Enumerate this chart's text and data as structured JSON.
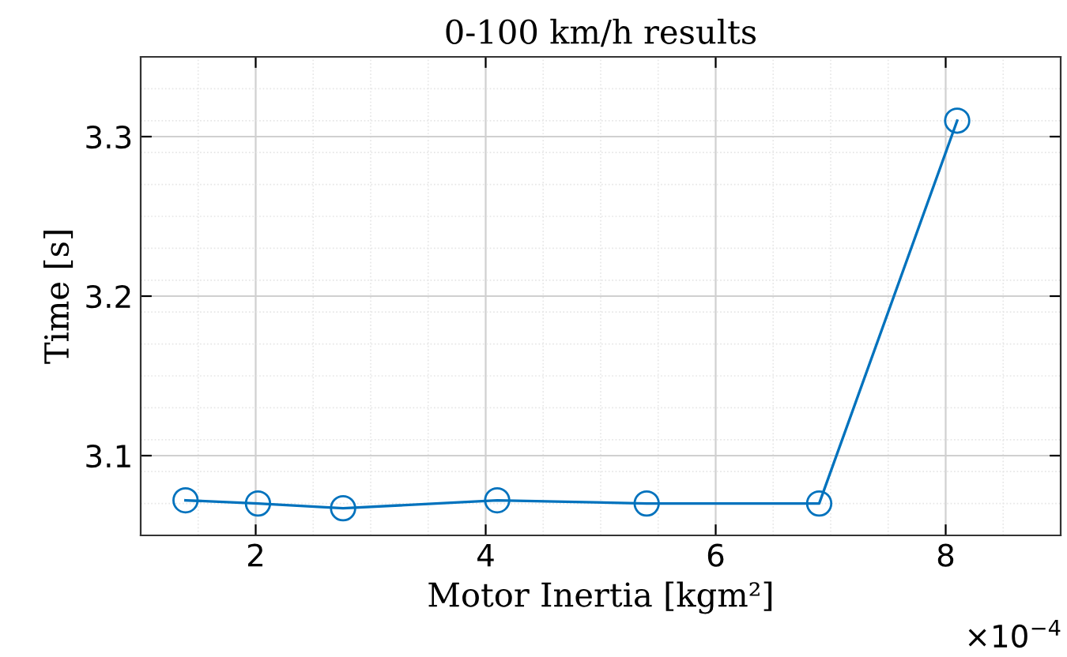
{
  "chart_data": {
    "type": "line",
    "title": "0-100 km/h results",
    "xlabel": "Motor Inertia [kgm²]",
    "ylabel": "Time [s]",
    "annotations": [
      "×10$^{−4}$"
    ],
    "x": [
      1.39,
      2.02,
      2.76,
      4.1,
      5.4,
      6.9,
      8.1
    ],
    "series": [
      {
        "color": "#0072bd",
        "values": [
          3.072,
          3.07,
          3.067,
          3.072,
          3.07,
          3.07,
          3.31
        ]
      }
    ],
    "xlim": [
      1,
      9
    ],
    "xticks": [
      2,
      4,
      6,
      8
    ],
    "ylim": [
      3.05,
      3.35
    ],
    "yticks": [
      {
        "value": 3.1,
        "label": "3.1"
      },
      {
        "value": 3.2,
        "label": "3.2"
      },
      {
        "value": 3.3,
        "label": "3.3"
      }
    ],
    "grid": true,
    "marker": "circle",
    "line_style": "solid"
  }
}
